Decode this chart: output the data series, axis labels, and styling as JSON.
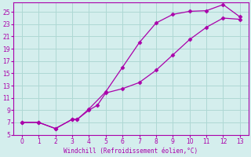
{
  "xlabel": "Windchill (Refroidissement éolien,°C)",
  "line_color": "#aa00aa",
  "bg_color": "#d4eeed",
  "grid_color": "#aed8d4",
  "xlim_min": -0.5,
  "xlim_max": 13.5,
  "ylim_min": 5,
  "ylim_max": 26.5,
  "yticks": [
    5,
    7,
    9,
    11,
    13,
    15,
    17,
    19,
    21,
    23,
    25
  ],
  "xticks": [
    0,
    1,
    2,
    3,
    4,
    5,
    6,
    7,
    8,
    9,
    10,
    11,
    12,
    13
  ],
  "curve1_x": [
    0,
    1,
    2,
    3,
    3.3,
    4,
    5,
    6,
    7,
    8,
    9,
    10,
    11,
    12,
    13
  ],
  "curve1_y": [
    7,
    7,
    6,
    7.5,
    7.5,
    9.2,
    12.0,
    16.0,
    20.0,
    23.2,
    24.6,
    25.1,
    25.2,
    26.2,
    24.2
  ],
  "curve2_x": [
    0,
    1,
    2,
    3,
    3.3,
    4,
    4.5,
    5,
    6,
    7,
    8,
    9,
    10,
    11,
    12,
    13
  ],
  "curve2_y": [
    7,
    7,
    6,
    7.5,
    7.5,
    9.0,
    9.8,
    11.8,
    12.5,
    13.5,
    15.5,
    18.0,
    20.5,
    22.5,
    24.0,
    23.8
  ]
}
